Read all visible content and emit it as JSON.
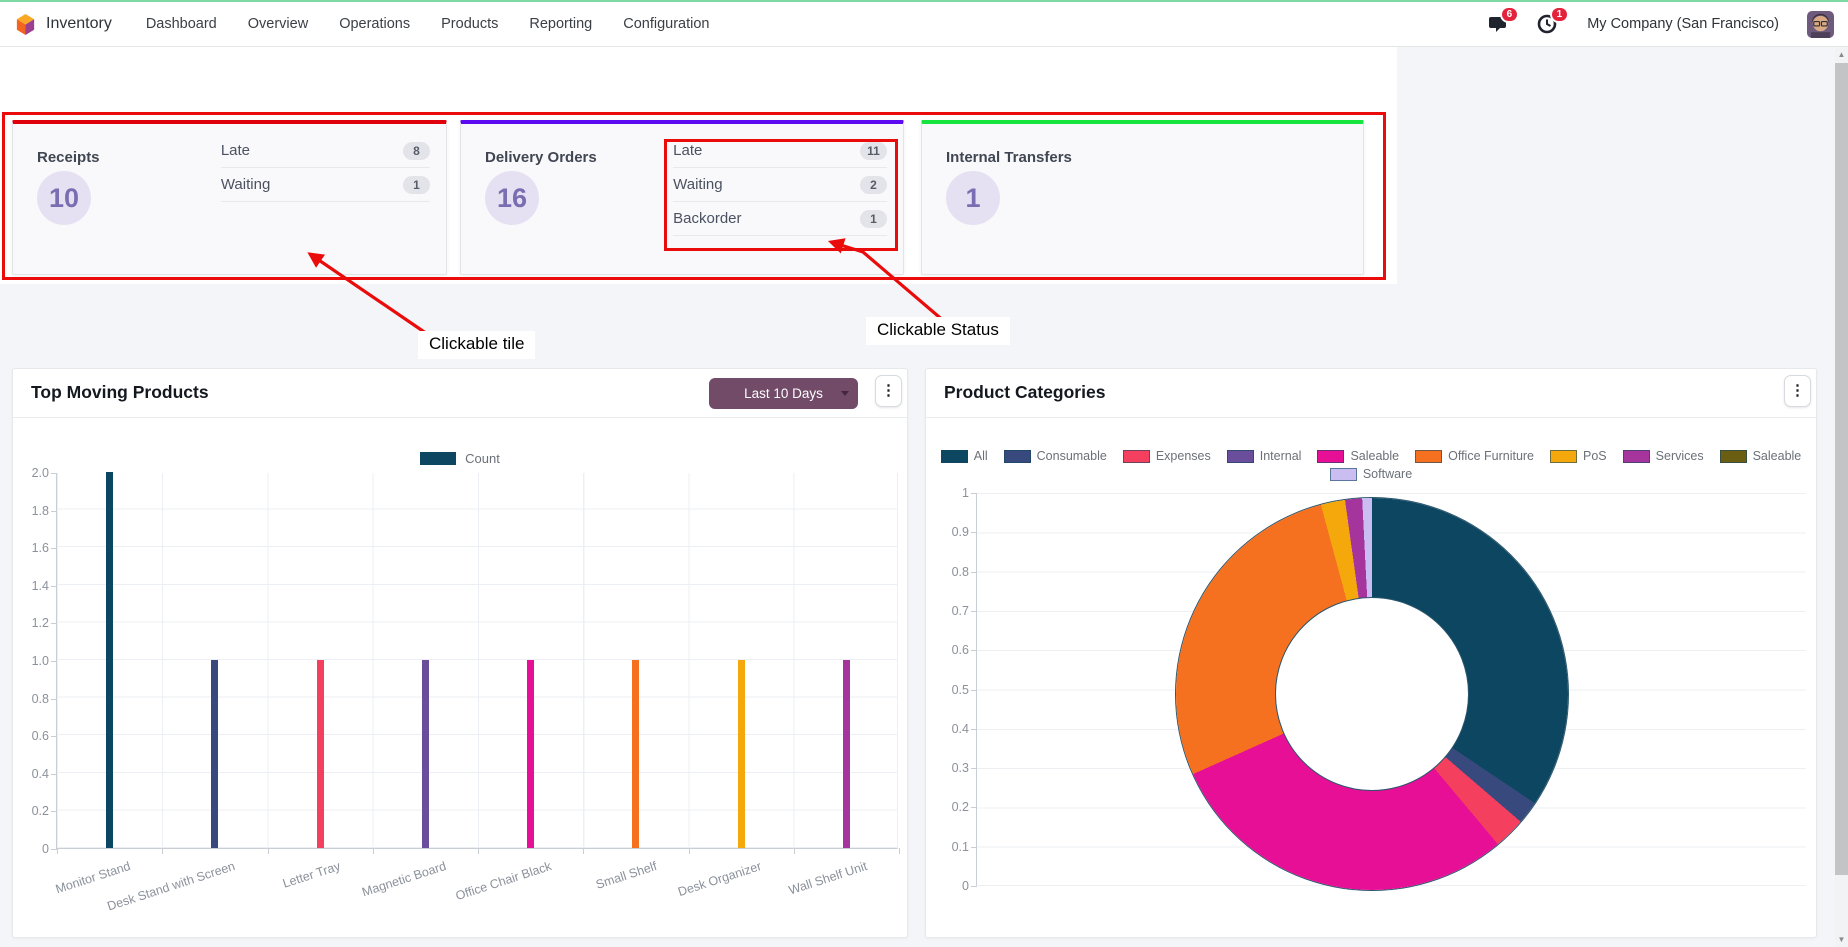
{
  "navbar": {
    "app_name": "Inventory",
    "menu": [
      "Dashboard",
      "Overview",
      "Operations",
      "Products",
      "Reporting",
      "Configuration"
    ],
    "messages_badge": "6",
    "activities_badge": "1",
    "company": "My Company (San Francisco)"
  },
  "tiles": [
    {
      "title": "Receipts",
      "count": "10",
      "accent": "#e0000c",
      "statuses": [
        {
          "label": "Late",
          "value": "8"
        },
        {
          "label": "Waiting",
          "value": "1"
        }
      ]
    },
    {
      "title": "Delivery Orders",
      "count": "16",
      "accent": "#5b0af1",
      "statuses": [
        {
          "label": "Late",
          "value": "11"
        },
        {
          "label": "Waiting",
          "value": "2"
        },
        {
          "label": "Backorder",
          "value": "1"
        }
      ]
    },
    {
      "title": "Internal Transfers",
      "count": "1",
      "accent": "#17e43e",
      "statuses": []
    }
  ],
  "annotations": {
    "tile_label": "Clickable tile",
    "status_label": "Clickable Status",
    "color": "#ea0b0b"
  },
  "icons": {
    "kebab": "⋮",
    "scroll_up": "▲",
    "scroll_down": "▼"
  },
  "chart_data": [
    {
      "type": "bar",
      "title": "Top Moving Products",
      "period_filter_label": "Last 10 Days",
      "legend": [
        {
          "label": "Count",
          "color": "#0c4660"
        }
      ],
      "legend_position": "top",
      "grid": true,
      "ylim": [
        0,
        2
      ],
      "yticks": [
        "2.0",
        "1.8",
        "1.6",
        "1.4",
        "1.2",
        "1.0",
        "0.8",
        "0.6",
        "0.4",
        "0.2",
        "0"
      ],
      "categories": [
        "Monitor Stand",
        "Desk Stand with Screen",
        "Letter Tray",
        "Magnetic Board",
        "Office Chair Black",
        "Small Shelf",
        "Desk Organizer",
        "Wall Shelf Unit"
      ],
      "values": [
        2,
        1,
        1,
        1,
        1,
        1,
        1,
        1
      ],
      "bar_colors": [
        "#0c4660",
        "#384a7d",
        "#f43f5e",
        "#6a4d9b",
        "#e80f97",
        "#f5701f",
        "#f4a80c",
        "#a5359c"
      ]
    },
    {
      "type": "pie",
      "title": "Product Categories",
      "legend_position": "top",
      "grid": true,
      "ylim": [
        0,
        1
      ],
      "yticks": [
        "1",
        "0.9",
        "0.8",
        "0.7",
        "0.6",
        "0.5",
        "0.4",
        "0.3",
        "0.2",
        "0.1",
        "0"
      ],
      "categories": [
        "All",
        "Consumable",
        "Expenses",
        "Internal",
        "Saleable",
        "Office Furniture",
        "PoS",
        "Services",
        "Saleable",
        "Software"
      ],
      "values_pct": [
        34.4,
        1.9,
        2.6,
        0,
        29.4,
        27.5,
        2.0,
        1.4,
        0,
        0.8
      ],
      "colors": [
        "#0c4660",
        "#384a7d",
        "#f43f5e",
        "#6a4d9b",
        "#e80f97",
        "#f5701f",
        "#f4a80c",
        "#a5359c",
        "#6b5e12",
        "#c9bdf2"
      ],
      "donut_hole_ratio": 0.495
    }
  ]
}
